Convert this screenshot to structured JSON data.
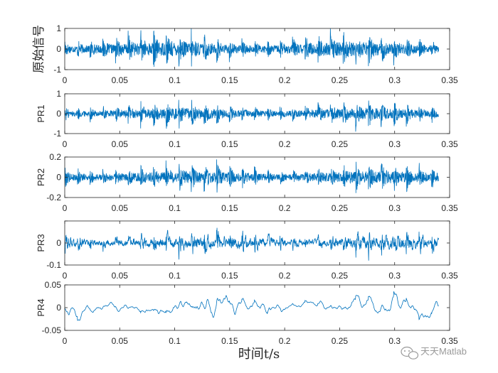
{
  "figure": {
    "xlabel": "时间t/s",
    "watermark": "天天Matlab",
    "line_color": "#0072BD",
    "axes_color": "#262626"
  },
  "chart_data": [
    {
      "type": "line",
      "ylabel": "原始信号",
      "xlim": [
        0,
        0.35
      ],
      "ylim": [
        -1,
        1
      ],
      "x_ticks": [
        "0",
        "0.05",
        "0.1",
        "0.15",
        "0.2",
        "0.25",
        "0.3",
        "0.35"
      ],
      "y_ticks": [
        "-1",
        "0",
        "1"
      ],
      "x_range": [
        0,
        0.34
      ],
      "amplitude": 1.0,
      "impulse_period": 0.0115,
      "noise": "broadband"
    },
    {
      "type": "line",
      "ylabel": "PR1",
      "xlim": [
        0,
        0.35
      ],
      "ylim": [
        -1,
        1
      ],
      "x_ticks": [
        "0",
        "0.05",
        "0.1",
        "0.15",
        "0.2",
        "0.25",
        "0.3",
        "0.35"
      ],
      "y_ticks": [
        "-1",
        "0",
        "1"
      ],
      "x_range": [
        0,
        0.34
      ],
      "amplitude": 0.9,
      "impulse_period": 0.0115,
      "noise": "broadband"
    },
    {
      "type": "line",
      "ylabel": "PR2",
      "xlim": [
        0,
        0.35
      ],
      "ylim": [
        -0.25,
        0.25
      ],
      "x_ticks": [
        "0",
        "0.05",
        "0.1",
        "0.15",
        "0.2",
        "0.25",
        "0.3",
        "0.35"
      ],
      "y_ticks": [
        "-0.2",
        "0",
        "0.2"
      ],
      "x_range": [
        0,
        0.34
      ],
      "amplitude": 0.22,
      "impulse_period": 0.0115,
      "noise": "broadband"
    },
    {
      "type": "line",
      "ylabel": "PR3",
      "xlim": [
        0,
        0.35
      ],
      "ylim": [
        -0.1,
        0.1
      ],
      "x_ticks": [
        "0",
        "0.05",
        "0.1",
        "0.15",
        "0.2",
        "0.25",
        "0.3",
        "0.35"
      ],
      "y_ticks": [
        "-0.1",
        "0",
        ""
      ],
      "x_range": [
        0,
        0.34
      ],
      "amplitude": 0.08,
      "impulse_period": 0.0115,
      "noise": "midband"
    },
    {
      "type": "line",
      "ylabel": "PR4",
      "xlim": [
        0,
        0.35
      ],
      "ylim": [
        -0.05,
        0.05
      ],
      "x_ticks": [
        "0",
        "0.05",
        "0.1",
        "0.15",
        "0.2",
        "0.25",
        "0.3",
        "0.35"
      ],
      "y_ticks": [
        "-0.05",
        "0",
        "0.05"
      ],
      "x_range": [
        0,
        0.34
      ],
      "amplitude": 0.035,
      "impulse_period": 0.0115,
      "noise": "lowband"
    }
  ]
}
